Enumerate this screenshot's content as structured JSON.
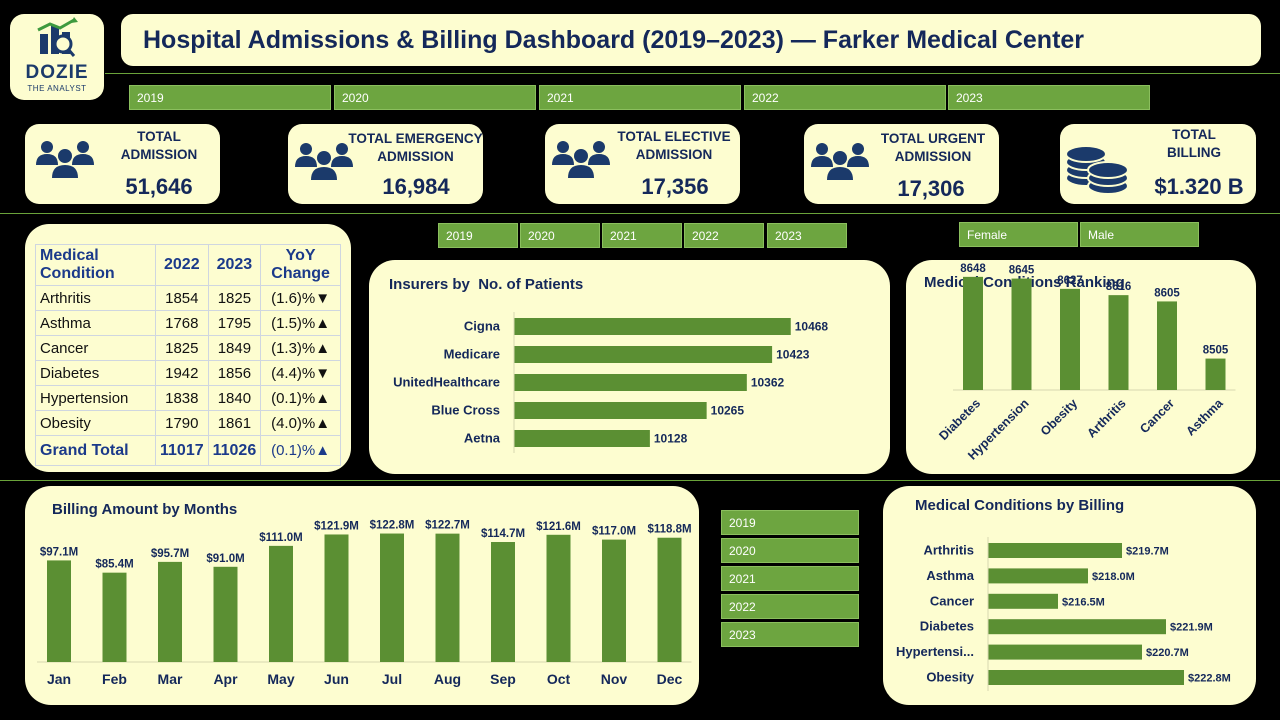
{
  "header": {
    "title": "Hospital Admissions & Billing Dashboard (2019–2023) — Farker Medical Center",
    "logo_line1": "DOZIE",
    "logo_line2": "THE ANALYST"
  },
  "colors": {
    "background": "#000000",
    "card": "#fdfdd0",
    "bar": "#5b8f33",
    "slicer": "#6da540",
    "navy": "#14285a",
    "down": "#e11d1d",
    "up": "#3e8a2a"
  },
  "top_slicer": [
    "2019",
    "2020",
    "2021",
    "2022",
    "2023"
  ],
  "mid_year_slicer": [
    "2019",
    "2020",
    "2021",
    "2022",
    "2023"
  ],
  "gender_slicer": [
    "Female",
    "Male"
  ],
  "side_year_slicer": [
    "2019",
    "2020",
    "2021",
    "2022",
    "2023"
  ],
  "kpis": [
    {
      "title_line1": "TOTAL",
      "title_line2": "ADMISSION",
      "value": "51,646",
      "icon": "people-icon"
    },
    {
      "title_line1": "TOTAL EMERGENCY",
      "title_line2": "ADMISSION",
      "value": "16,984",
      "icon": "people-icon"
    },
    {
      "title_line1": "TOTAL ELECTIVE",
      "title_line2": "ADMISSION",
      "value": "17,356",
      "icon": "people-icon"
    },
    {
      "title_line1": "TOTAL URGENT",
      "title_line2": "ADMISSION",
      "value": "17,306",
      "icon": "people-icon"
    },
    {
      "title_line1": "TOTAL",
      "title_line2": "BILLING",
      "value": "$1.320 B",
      "icon": "coins-icon"
    }
  ],
  "condition_table": {
    "headers": [
      "Medical Condition",
      "2022",
      "2023",
      "YoY Change"
    ],
    "rows": [
      {
        "name": "Arthritis",
        "y2022": "1854",
        "y2023": "1825",
        "change": "(1.6)%",
        "arrow": "▼",
        "dir": "down"
      },
      {
        "name": "Asthma",
        "y2022": "1768",
        "y2023": "1795",
        "change": "(1.5)%",
        "arrow": "▲",
        "dir": "up"
      },
      {
        "name": "Cancer",
        "y2022": "1825",
        "y2023": "1849",
        "change": "(1.3)%",
        "arrow": "▲",
        "dir": "up"
      },
      {
        "name": "Diabetes",
        "y2022": "1942",
        "y2023": "1856",
        "change": "(4.4)%",
        "arrow": "▼",
        "dir": "down"
      },
      {
        "name": "Hypertension",
        "y2022": "1838",
        "y2023": "1840",
        "change": "(0.1)%",
        "arrow": "▲",
        "dir": "up"
      },
      {
        "name": "Obesity",
        "y2022": "1790",
        "y2023": "1861",
        "change": "(4.0)%",
        "arrow": "▲",
        "dir": "up"
      }
    ],
    "total": {
      "name": "Grand Total",
      "y2022": "11017",
      "y2023": "11026",
      "change": "(0.1)%",
      "arrow": "▲",
      "dir": "up"
    }
  },
  "chart_data": [
    {
      "id": "insurers",
      "type": "bar",
      "orientation": "horizontal",
      "title": "Insurers by  No. of Patients",
      "categories": [
        "Cigna",
        "Medicare",
        "UnitedHealthcare",
        "Blue Cross",
        "Aetna"
      ],
      "values": [
        10468,
        10423,
        10362,
        10265,
        10128
      ],
      "labels": [
        "10468",
        "10423",
        "10362",
        "10265",
        "10128"
      ],
      "xlim": [
        9800,
        10500
      ],
      "grid": false
    },
    {
      "id": "ranking",
      "type": "bar",
      "orientation": "vertical",
      "title": "Medical Conditions Ranking",
      "categories": [
        "Diabetes",
        "Hypertension",
        "Obesity",
        "Arthritis",
        "Cancer",
        "Asthma"
      ],
      "values": [
        8648,
        8645,
        8627,
        8616,
        8605,
        8505
      ],
      "labels": [
        "8648",
        "8645",
        "8627",
        "8616",
        "8605",
        "8505"
      ],
      "ylim": [
        8450,
        8660
      ],
      "grid": false
    },
    {
      "id": "billing_months",
      "type": "bar",
      "orientation": "vertical",
      "title": "Billing Amount by Months",
      "categories": [
        "Jan",
        "Feb",
        "Mar",
        "Apr",
        "May",
        "Jun",
        "Jul",
        "Aug",
        "Sep",
        "Oct",
        "Nov",
        "Dec"
      ],
      "values": [
        97.1,
        85.4,
        95.7,
        91.0,
        111.0,
        121.9,
        122.8,
        122.7,
        114.7,
        121.6,
        117.0,
        118.8
      ],
      "labels": [
        "$97.1M",
        "$85.4M",
        "$95.7M",
        "$91.0M",
        "$111.0M",
        "$121.9M",
        "$122.8M",
        "$122.7M",
        "$114.7M",
        "$121.6M",
        "$117.0M",
        "$118.8M"
      ],
      "ylim": [
        0,
        130
      ],
      "grid": false
    },
    {
      "id": "billing_conditions",
      "type": "bar",
      "orientation": "horizontal",
      "title": "Medical Conditions by Billing",
      "categories": [
        "Arthritis",
        "Asthma",
        "Cancer",
        "Diabetes",
        "Hypertensi...",
        "Obesity"
      ],
      "values": [
        219.7,
        218.0,
        216.5,
        221.9,
        220.7,
        222.8
      ],
      "labels": [
        "$219.7M",
        "$218.0M",
        "$216.5M",
        "$221.9M",
        "$220.7M",
        "$222.8M"
      ],
      "xlim": [
        213,
        223
      ],
      "grid": false
    }
  ]
}
